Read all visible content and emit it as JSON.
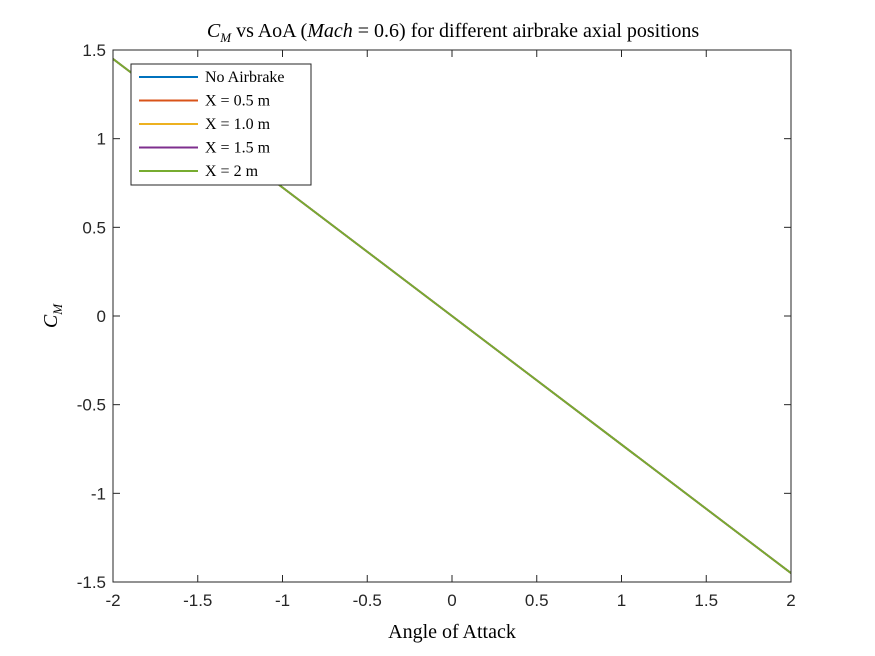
{
  "chart_data": {
    "type": "line",
    "title": "C_M vs AoA (Mach = 0.6) for different airbrake axial positions",
    "title_parts": {
      "c_main": "C",
      "c_sub": "M",
      "vs_aoa": " vs AoA (",
      "mach_italic": "Mach",
      "mach_value": " = 0.6)",
      "rest": " for different airbrake axial positions"
    },
    "xlabel": "Angle of Attack",
    "ylabel": "C_M",
    "ylabel_parts": {
      "main": "C",
      "sub": "M"
    },
    "xlim": [
      -2,
      2
    ],
    "ylim": [
      -1.5,
      1.5
    ],
    "xticks": [
      -2,
      -1.5,
      -1,
      -0.5,
      0,
      0.5,
      1,
      1.5,
      2
    ],
    "xtick_labels": [
      "-2",
      "-1.5",
      "-1",
      "-0.5",
      "0",
      "0.5",
      "1",
      "1.5",
      "2"
    ],
    "yticks": [
      -1.5,
      -1,
      -0.5,
      0,
      0.5,
      1,
      1.5
    ],
    "ytick_labels": [
      "-1.5",
      "-1",
      "-0.5",
      "0",
      "0.5",
      "1",
      "1.5"
    ],
    "grid": false,
    "legend_position": "top-left",
    "series": [
      {
        "name": "No Airbrake",
        "color": "#0072BD",
        "x": [
          -2,
          2
        ],
        "y": [
          1.45,
          -1.45
        ]
      },
      {
        "name": "X = 0.5 m",
        "color": "#D95319",
        "x": [
          -2,
          2
        ],
        "y": [
          1.45,
          -1.45
        ]
      },
      {
        "name": "X = 1.0 m",
        "color": "#EDB120",
        "x": [
          -2,
          2
        ],
        "y": [
          1.45,
          -1.45
        ]
      },
      {
        "name": "X = 1.5 m",
        "color": "#7E2F8E",
        "x": [
          -2,
          2
        ],
        "y": [
          1.45,
          -1.45
        ]
      },
      {
        "name": "X = 2 m",
        "color": "#77AC30",
        "x": [
          -2,
          2
        ],
        "y": [
          1.45,
          -1.45
        ]
      }
    ]
  }
}
